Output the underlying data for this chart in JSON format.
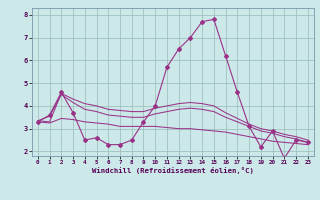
{
  "xlabel": "Windchill (Refroidissement éolien,°C)",
  "bg_color": "#cce8e8",
  "line_color": "#993388",
  "grid_color": "#99bbbb",
  "xlim": [
    -0.5,
    23.5
  ],
  "ylim": [
    1.8,
    8.3
  ],
  "xticks": [
    0,
    1,
    2,
    3,
    4,
    5,
    6,
    7,
    8,
    9,
    10,
    11,
    12,
    13,
    14,
    15,
    16,
    17,
    18,
    19,
    20,
    21,
    22,
    23
  ],
  "yticks": [
    2,
    3,
    4,
    5,
    6,
    7,
    8
  ],
  "series_main": [
    3.3,
    3.6,
    4.6,
    3.7,
    2.5,
    2.6,
    2.3,
    2.3,
    2.5,
    3.3,
    4.0,
    5.7,
    6.5,
    7.0,
    7.7,
    7.8,
    6.2,
    4.6,
    3.1,
    2.2,
    2.9,
    1.7,
    2.5,
    2.4
  ],
  "series_line1": [
    3.35,
    3.3,
    4.55,
    4.3,
    4.1,
    4.0,
    3.85,
    3.8,
    3.75,
    3.75,
    3.9,
    4.0,
    4.1,
    4.15,
    4.1,
    4.0,
    3.7,
    3.45,
    3.2,
    3.0,
    2.9,
    2.75,
    2.65,
    2.5
  ],
  "series_line2": [
    3.35,
    3.55,
    4.5,
    4.15,
    3.85,
    3.75,
    3.6,
    3.55,
    3.5,
    3.5,
    3.65,
    3.75,
    3.85,
    3.9,
    3.85,
    3.75,
    3.5,
    3.3,
    3.1,
    2.9,
    2.8,
    2.65,
    2.55,
    2.4
  ],
  "series_line3": [
    3.3,
    3.25,
    3.45,
    3.4,
    3.3,
    3.25,
    3.2,
    3.1,
    3.1,
    3.1,
    3.1,
    3.05,
    3.0,
    3.0,
    2.95,
    2.9,
    2.85,
    2.75,
    2.65,
    2.55,
    2.45,
    2.4,
    2.35,
    2.3
  ]
}
